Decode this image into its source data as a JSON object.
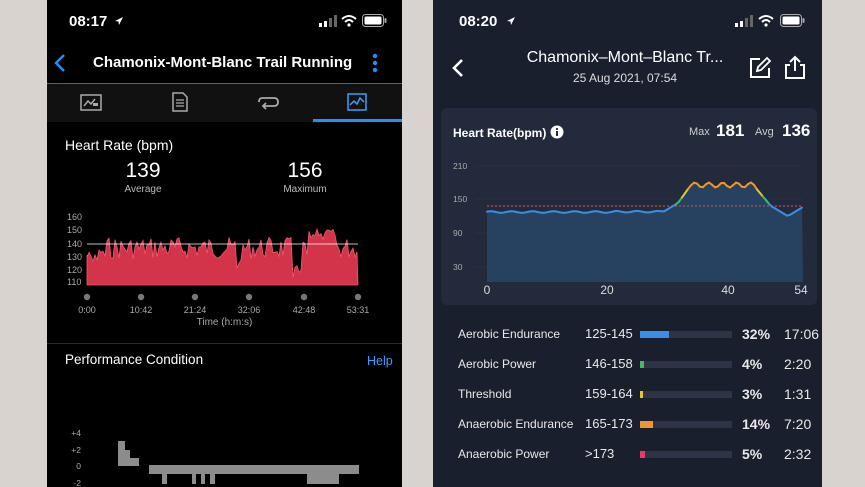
{
  "left": {
    "status_time": "08:17",
    "title": "Chamonix-Mont-Blanc Trail Running",
    "hr_title": "Heart Rate (bpm)",
    "avg_value": "139",
    "avg_label": "Average",
    "max_value": "156",
    "max_label": "Maximum",
    "y_ticks": [
      "160",
      "150",
      "140",
      "130",
      "120",
      "110"
    ],
    "x_ticks": [
      "0:00",
      "10:42",
      "21:24",
      "32:06",
      "42:48",
      "53:31"
    ],
    "x_title": "Time (h:m:s)",
    "perf_title": "Performance Condition",
    "help": "Help",
    "perf_ticks": [
      "+4",
      "+2",
      "0",
      "-2"
    ]
  },
  "right": {
    "status_time": "08:20",
    "title": "Chamonix–Mont–Blanc Tr...",
    "subtitle": "25 Aug 2021, 07:54",
    "hr_title": "Heart Rate(bpm)",
    "max_label": "Max",
    "max_value": "181",
    "avg_label": "Avg",
    "avg_value": "136",
    "y_ticks": [
      "210",
      "150",
      "90",
      "30"
    ],
    "x_ticks": [
      "0",
      "20",
      "40",
      "54"
    ],
    "zones": [
      {
        "name": "Aerobic Endurance",
        "range": "125-145",
        "pct": "32%",
        "time": "17:06",
        "fraction": 0.32,
        "color": "#3a8ee6"
      },
      {
        "name": "Aerobic Power",
        "range": "146-158",
        "pct": "4%",
        "time": "2:20",
        "fraction": 0.04,
        "color": "#39c15a"
      },
      {
        "name": "Threshold",
        "range": "159-164",
        "pct": "3%",
        "time": "1:31",
        "fraction": 0.03,
        "color": "#e7c530"
      },
      {
        "name": "Anaerobic Endurance",
        "range": "165-173",
        "pct": "14%",
        "time": "7:20",
        "fraction": 0.14,
        "color": "#f0962a"
      },
      {
        "name": "Anaerobic Power",
        "range": ">173",
        "pct": "5%",
        "time": "2:32",
        "fraction": 0.05,
        "color": "#e53e5e"
      }
    ]
  }
}
